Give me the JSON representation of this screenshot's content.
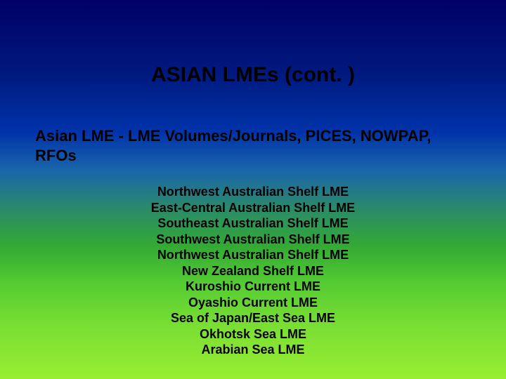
{
  "title": "ASIAN LMEs (cont. )",
  "subtitle": "Asian LME  -  LME Volumes/Journals, PICES, NOWPAP, RFOs",
  "items": [
    "Northwest Australian Shelf LME",
    "East-Central Australian Shelf LME",
    "Southeast Australian Shelf LME",
    "Southwest Australian Shelf LME",
    "Northwest Australian Shelf LME",
    "New Zealand Shelf LME",
    "Kuroshio Current LME",
    "Oyashio Current LME",
    "Sea of Japan/East Sea LME",
    "Okhotsk Sea LME",
    "Arabian Sea LME"
  ],
  "colors": {
    "text": "#000000"
  }
}
